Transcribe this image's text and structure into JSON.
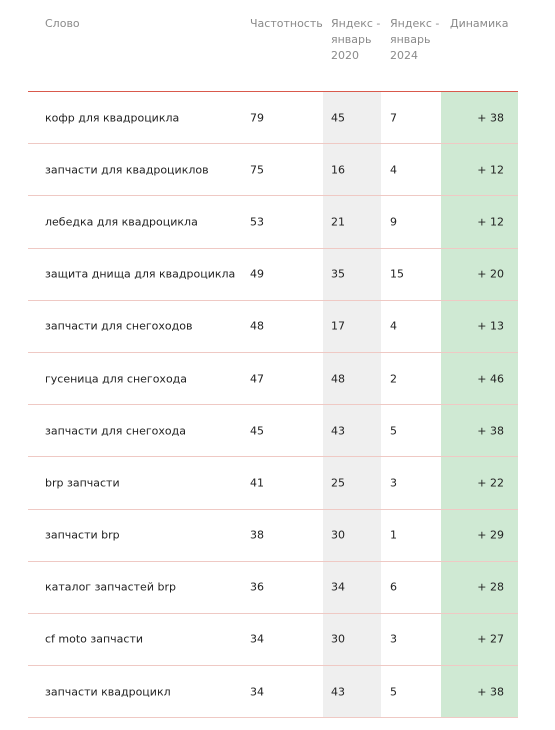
{
  "headers": {
    "word": "Слово",
    "frequency": "Частотность",
    "yandex2020": "Яндекс - январь 2020",
    "yandex2024": "Яндекс - январь 2024",
    "dynamics": "Динамика"
  },
  "colors": {
    "header_border": "#d9594c",
    "row_border": "#efc9c4",
    "col_2020_bg": "#efefef",
    "dynamics_bg": "#cfe9d3"
  },
  "rows": [
    {
      "word": "кофр для квадроцикла",
      "freq": "79",
      "y2020": "45",
      "y2024": "7",
      "dyn": "+ 38"
    },
    {
      "word": "запчасти для квадроциклов",
      "freq": "75",
      "y2020": "16",
      "y2024": "4",
      "dyn": "+ 12"
    },
    {
      "word": "лебедка для квадроцикла",
      "freq": "53",
      "y2020": "21",
      "y2024": "9",
      "dyn": "+ 12"
    },
    {
      "word": "защита днища для квадроцикла",
      "freq": "49",
      "y2020": "35",
      "y2024": "15",
      "dyn": "+ 20"
    },
    {
      "word": "запчасти для снегоходов",
      "freq": "48",
      "y2020": "17",
      "y2024": "4",
      "dyn": "+ 13"
    },
    {
      "word": "гусеница для снегохода",
      "freq": "47",
      "y2020": "48",
      "y2024": "2",
      "dyn": "+ 46"
    },
    {
      "word": "запчасти для снегохода",
      "freq": "45",
      "y2020": "43",
      "y2024": "5",
      "dyn": "+ 38"
    },
    {
      "word": "brp запчасти",
      "freq": "41",
      "y2020": "25",
      "y2024": "3",
      "dyn": "+ 22"
    },
    {
      "word": "запчасти brp",
      "freq": "38",
      "y2020": "30",
      "y2024": "1",
      "dyn": "+ 29"
    },
    {
      "word": "каталог запчастей brp",
      "freq": "36",
      "y2020": "34",
      "y2024": "6",
      "dyn": "+ 28"
    },
    {
      "word": "cf moto запчасти",
      "freq": "34",
      "y2020": "30",
      "y2024": "3",
      "dyn": "+ 27"
    },
    {
      "word": "запчасти квадроцикл",
      "freq": "34",
      "y2020": "43",
      "y2024": "5",
      "dyn": "+ 38"
    }
  ]
}
